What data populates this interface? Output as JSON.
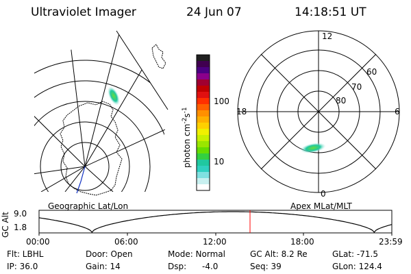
{
  "header": {
    "title": "Ultraviolet Imager",
    "date": "24 Jun 07",
    "time": "14:18:51 UT"
  },
  "geo_map": {
    "label": "Geographic Lat/Lon"
  },
  "colorbar": {
    "unit": "photon cm",
    "unit_sup1": "-2",
    "unit_s": "s",
    "unit_sup2": "-1",
    "ticks": [
      "100",
      "10"
    ],
    "colors": [
      "#202020",
      "#400050",
      "#4b0082",
      "#8b008b",
      "#a00030",
      "#c00000",
      "#e01010",
      "#ff3000",
      "#ff6000",
      "#ff9000",
      "#ffb000",
      "#ffd000",
      "#f0f000",
      "#c8f000",
      "#9ae600",
      "#66dc00",
      "#33d040",
      "#20c8a0",
      "#30d0c0",
      "#80e0e0",
      "#c8f0f0",
      "#ffffff"
    ]
  },
  "polar_plot": {
    "label": "Apex MLat/MLT",
    "mlt_labels": {
      "top": "12",
      "left": "18",
      "right": "6",
      "bottom": "0"
    },
    "lat_labels": [
      "60",
      "70",
      "80"
    ]
  },
  "altitude_panel": {
    "ylabel": "GC Alt",
    "yticks": [
      "9.0",
      "1.8"
    ],
    "xticks": [
      "00:00",
      "06:00",
      "12:00",
      "18:00",
      "23:59"
    ],
    "current_time_marker_color": "#ff0000"
  },
  "info": {
    "flt": "Flt: LBHL",
    "door": "Door: Open",
    "mode": "Mode: Normal",
    "gc_alt": "GC Alt: 8.2 Re",
    "glat": "GLat: -71.5",
    "ip": "IP: 36.0",
    "gain": "Gain: 14",
    "dsp_label": "Dsp:",
    "dsp_value": "-4.0",
    "seq": "Seq: 39",
    "glon": "GLon: 124.4"
  }
}
